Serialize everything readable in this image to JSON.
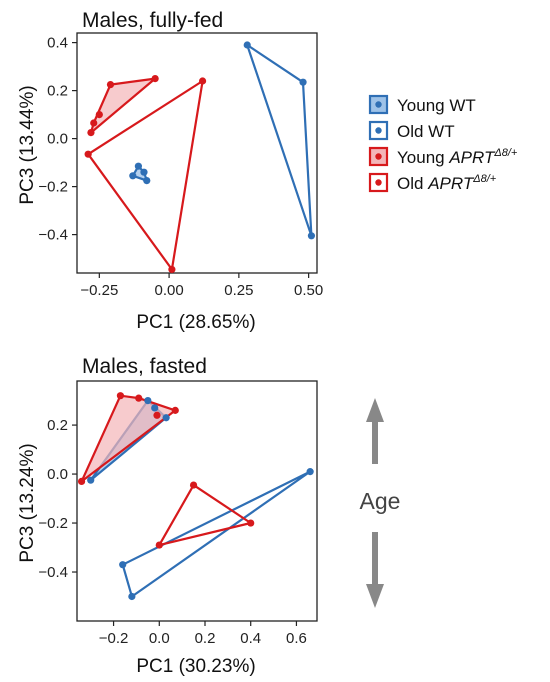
{
  "colors": {
    "young_wt": "#2f6fb5",
    "old_wt": "#2f6fb5",
    "young_aprt": "#d7191c",
    "old_aprt": "#d7191c",
    "young_wt_fill": "#9ec2e8",
    "young_aprt_fill": "#f3b5b8",
    "arrow": "#888888"
  },
  "legend": {
    "items": [
      {
        "label": "Young WT",
        "sup": "",
        "italic": false,
        "color": "#2f6fb5",
        "filled": true
      },
      {
        "label": "Old WT",
        "sup": "",
        "italic": false,
        "color": "#2f6fb5",
        "filled": false
      },
      {
        "label_prefix": "Young ",
        "label": "APRT",
        "sup": "Δ8/+",
        "italic": true,
        "color": "#d7191c",
        "filled": true
      },
      {
        "label_prefix": "Old ",
        "label": "APRT",
        "sup": "Δ8/+",
        "italic": true,
        "color": "#d7191c",
        "filled": false
      }
    ]
  },
  "age_label": "Age",
  "chart_data": [
    {
      "type": "scatter",
      "title": "Males, fully-fed",
      "xlabel": "PC1 (28.65%)",
      "ylabel": "PC3 (13.44%)",
      "xlim": [
        -0.33,
        0.53
      ],
      "ylim": [
        -0.56,
        0.44
      ],
      "xticks": [
        -0.25,
        0.0,
        0.25,
        0.5
      ],
      "xtick_labels": [
        "−0.25",
        "0.00",
        "0.25",
        "0.50"
      ],
      "yticks": [
        0.4,
        0.2,
        0.0,
        -0.2,
        -0.4
      ],
      "ytick_labels": [
        "0.4",
        "0.2",
        "0.0",
        "−0.2",
        "−0.4"
      ],
      "series": [
        {
          "name": "Young WT",
          "hull": true,
          "x": [
            -0.13,
            -0.11,
            -0.08,
            -0.09
          ],
          "y": [
            -0.155,
            -0.115,
            -0.175,
            -0.14
          ]
        },
        {
          "name": "Old WT",
          "hull": false,
          "x": [
            0.28,
            0.48,
            0.51
          ],
          "y": [
            0.39,
            0.235,
            -0.405
          ]
        },
        {
          "name": "Young APRT",
          "hull": true,
          "x": [
            -0.21,
            -0.05,
            -0.27,
            -0.28,
            -0.25
          ],
          "y": [
            0.225,
            0.25,
            0.065,
            0.025,
            0.1
          ]
        },
        {
          "name": "Old APRT",
          "hull": false,
          "x": [
            -0.29,
            0.12,
            0.01
          ],
          "y": [
            -0.065,
            0.24,
            -0.545
          ]
        }
      ]
    },
    {
      "type": "scatter",
      "title": "Males, fasted",
      "xlabel": "PC1 (30.23%)",
      "ylabel": "PC3 (13.24%)",
      "xlim": [
        -0.36,
        0.69
      ],
      "ylim": [
        -0.6,
        0.38
      ],
      "xticks": [
        -0.2,
        0.0,
        0.2,
        0.4,
        0.6
      ],
      "xtick_labels": [
        "−0.2",
        "0.0",
        "0.2",
        "0.4",
        "0.6"
      ],
      "yticks": [
        0.2,
        0.0,
        -0.2,
        -0.4
      ],
      "ytick_labels": [
        "0.2",
        "0.0",
        "−0.2",
        "−0.4"
      ],
      "series": [
        {
          "name": "Young WT",
          "hull": true,
          "x": [
            -0.3,
            -0.05,
            0.03,
            -0.02
          ],
          "y": [
            -0.025,
            0.3,
            0.23,
            0.27
          ]
        },
        {
          "name": "Old WT",
          "hull": false,
          "x": [
            -0.16,
            -0.12,
            0.66
          ],
          "y": [
            -0.37,
            -0.5,
            0.01
          ]
        },
        {
          "name": "Young APRT",
          "hull": true,
          "x": [
            -0.34,
            -0.17,
            -0.09,
            0.07,
            -0.01
          ],
          "y": [
            -0.03,
            0.32,
            0.31,
            0.26,
            0.24
          ]
        },
        {
          "name": "Old APRT",
          "hull": false,
          "x": [
            0.15,
            0.4,
            0.0
          ],
          "y": [
            -0.045,
            -0.2,
            -0.29
          ]
        }
      ]
    }
  ]
}
